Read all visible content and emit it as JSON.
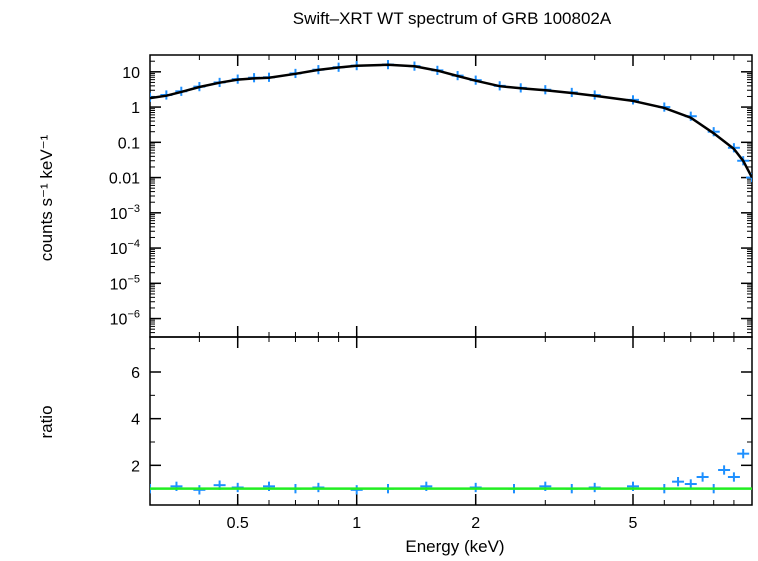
{
  "chart_data": [
    {
      "type": "scatter",
      "title": "Swift–XRT WT spectrum of GRB 100802A",
      "xlabel": "",
      "ylabel": "counts s⁻¹ keV⁻¹",
      "xscale": "log",
      "yscale": "log",
      "xlim": [
        0.3,
        10
      ],
      "ylim": [
        3e-07,
        30
      ],
      "grid": false,
      "y_ticks": [
        {
          "value": 10,
          "label": "10"
        },
        {
          "value": 1,
          "label": "1"
        },
        {
          "value": 0.1,
          "label": "0.1"
        },
        {
          "value": 0.01,
          "label": "0.01"
        },
        {
          "value": 0.001,
          "base": "10",
          "exp": "−3"
        },
        {
          "value": 0.0001,
          "base": "10",
          "exp": "−4"
        },
        {
          "value": 1e-05,
          "base": "10",
          "exp": "−5"
        },
        {
          "value": 1e-06,
          "base": "10",
          "exp": "−6"
        }
      ],
      "series": [
        {
          "style": "data points with error bars",
          "color": "#1e90ff",
          "x": [
            0.3,
            0.33,
            0.36,
            0.4,
            0.45,
            0.5,
            0.55,
            0.6,
            0.7,
            0.8,
            0.9,
            1.0,
            1.2,
            1.4,
            1.6,
            1.8,
            2.0,
            2.3,
            2.6,
            3.0,
            3.5,
            4.0,
            5.0,
            6.0,
            7.0,
            8.0,
            9.0,
            9.5,
            10.0
          ],
          "y": [
            1.9,
            2.2,
            2.8,
            3.8,
            5.0,
            6.2,
            6.8,
            7.0,
            9.0,
            11.5,
            13.5,
            15.0,
            16.0,
            14.5,
            11.0,
            7.8,
            5.8,
            4.0,
            3.5,
            3.1,
            2.6,
            2.2,
            1.6,
            1.0,
            0.55,
            0.2,
            0.07,
            0.03,
            0.01
          ]
        },
        {
          "style": "model line",
          "color": "#000000",
          "x": [
            0.3,
            0.33,
            0.36,
            0.4,
            0.45,
            0.5,
            0.55,
            0.6,
            0.7,
            0.8,
            0.9,
            1.0,
            1.2,
            1.4,
            1.6,
            1.8,
            2.0,
            2.3,
            2.6,
            3.0,
            3.5,
            4.0,
            5.0,
            6.0,
            7.0,
            8.0,
            9.0,
            9.5,
            10.0
          ],
          "y": [
            1.8,
            2.1,
            2.7,
            3.7,
            4.9,
            6.0,
            6.5,
            6.8,
            8.8,
            11.3,
            13.3,
            14.8,
            15.8,
            14.3,
            10.8,
            7.6,
            5.6,
            3.9,
            3.4,
            3.0,
            2.5,
            2.1,
            1.5,
            0.95,
            0.5,
            0.18,
            0.065,
            0.03,
            0.01
          ]
        }
      ]
    },
    {
      "type": "scatter",
      "xlabel": "Energy (keV)",
      "ylabel": "ratio",
      "xscale": "log",
      "yscale": "linear",
      "xlim": [
        0.3,
        10
      ],
      "ylim": [
        0.3,
        7.5
      ],
      "grid": false,
      "x_ticks": [
        {
          "value": 0.5,
          "label": "0.5"
        },
        {
          "value": 1,
          "label": "1"
        },
        {
          "value": 2,
          "label": "2"
        },
        {
          "value": 5,
          "label": "5"
        }
      ],
      "y_ticks": [
        {
          "value": 2,
          "label": "2"
        },
        {
          "value": 4,
          "label": "4"
        },
        {
          "value": 6,
          "label": "6"
        }
      ],
      "series": [
        {
          "style": "data points with error bars",
          "color": "#1e90ff",
          "x": [
            0.3,
            0.35,
            0.4,
            0.45,
            0.5,
            0.6,
            0.7,
            0.8,
            1.0,
            1.2,
            1.5,
            2.0,
            2.5,
            3.0,
            3.5,
            4.0,
            5.0,
            6.0,
            6.5,
            7.0,
            7.5,
            8.0,
            8.5,
            9.0,
            9.5
          ],
          "y": [
            1.0,
            1.1,
            0.95,
            1.15,
            1.05,
            1.1,
            1.0,
            1.05,
            0.95,
            1.0,
            1.1,
            1.05,
            1.0,
            1.1,
            1.0,
            1.05,
            1.1,
            1.0,
            1.3,
            1.2,
            1.5,
            1.0,
            1.8,
            1.5,
            2.5
          ]
        },
        {
          "style": "unity reference line",
          "color": "#22ee22",
          "x": [
            0.3,
            10
          ],
          "y": [
            1.0,
            1.0
          ]
        }
      ]
    }
  ]
}
